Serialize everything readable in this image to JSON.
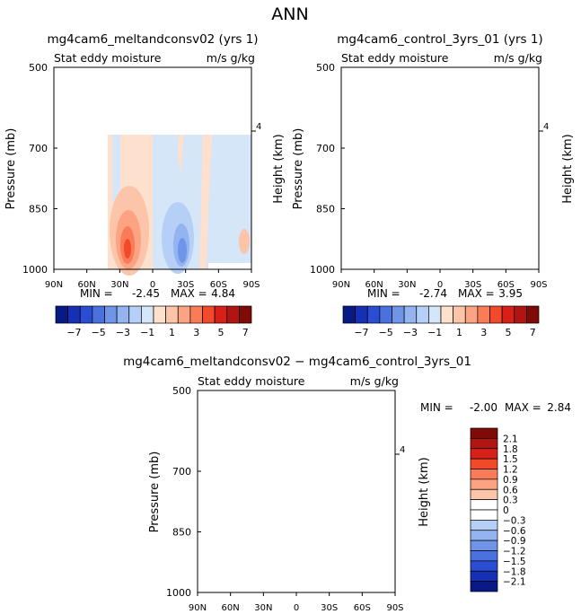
{
  "page_title": "ANN",
  "chart_data": [
    {
      "type": "heatmap",
      "title": "mg4cam6_meltandconsv02 (yrs 1)",
      "subtitle_left": "Stat eddy moisture",
      "subtitle_right": "m/s g/kg",
      "ylabel": "Pressure (mb)",
      "ylabel_right": "Height (km)",
      "x_ticks": [
        "90N",
        "60N",
        "30N",
        "0",
        "30S",
        "60S",
        "90S"
      ],
      "y_ticks": [
        "500",
        "700",
        "850",
        "1000"
      ],
      "right_ticks": [
        "4"
      ],
      "min_label": "MIN =",
      "min_value": "-2.45",
      "max_label": "MAX =",
      "max_value": "4.84",
      "colorbar_labels": [
        "−7",
        "−5",
        "−3",
        "−1",
        "1",
        "3",
        "5",
        "7"
      ]
    },
    {
      "type": "heatmap",
      "title": "mg4cam6_control_3yrs_01 (yrs 1)",
      "subtitle_left": "Stat eddy moisture",
      "subtitle_right": "m/s g/kg",
      "ylabel": "Pressure (mb)",
      "ylabel_right": "Height (km)",
      "x_ticks": [
        "90N",
        "60N",
        "30N",
        "0",
        "30S",
        "60S",
        "90S"
      ],
      "y_ticks": [
        "500",
        "700",
        "850",
        "1000"
      ],
      "right_ticks": [
        "4"
      ],
      "min_label": "MIN =",
      "min_value": "-2.74",
      "max_label": "MAX =",
      "max_value": "3.95",
      "colorbar_labels": [
        "−7",
        "−5",
        "−3",
        "−1",
        "1",
        "3",
        "5",
        "7"
      ]
    },
    {
      "type": "heatmap",
      "title": "mg4cam6_meltandconsv02 − mg4cam6_control_3yrs_01",
      "subtitle_left": "Stat eddy moisture",
      "subtitle_right": "m/s g/kg",
      "ylabel": "Pressure (mb)",
      "ylabel_right": "Height (km)",
      "x_ticks": [
        "90N",
        "60N",
        "30N",
        "0",
        "30S",
        "60S",
        "90S"
      ],
      "y_ticks": [
        "500",
        "700",
        "850",
        "1000"
      ],
      "right_ticks": [
        "4"
      ],
      "min_label": "MIN =",
      "min_value": "-2.00",
      "max_label": "MAX =",
      "max_value": "2.84",
      "colorbar_labels": [
        "2.1",
        "1.8",
        "1.5",
        "1.2",
        "0.9",
        "0.6",
        "0.3",
        "0",
        "−0.3",
        "−0.6",
        "−0.9",
        "−1.2",
        "−1.5",
        "−1.8",
        "−2.1"
      ]
    }
  ],
  "colors": {
    "pos": [
      "#fde0cd",
      "#fcc4a8",
      "#fba383",
      "#f97b57",
      "#f04a2a",
      "#d7201a",
      "#b11511",
      "#7f0b08"
    ],
    "neg": [
      "#d5e6f9",
      "#b5cff6",
      "#93b4f1",
      "#6e95e8",
      "#4b71df",
      "#2b4dd2",
      "#1530b4",
      "#091a84"
    ],
    "zero": "#ffffff"
  }
}
